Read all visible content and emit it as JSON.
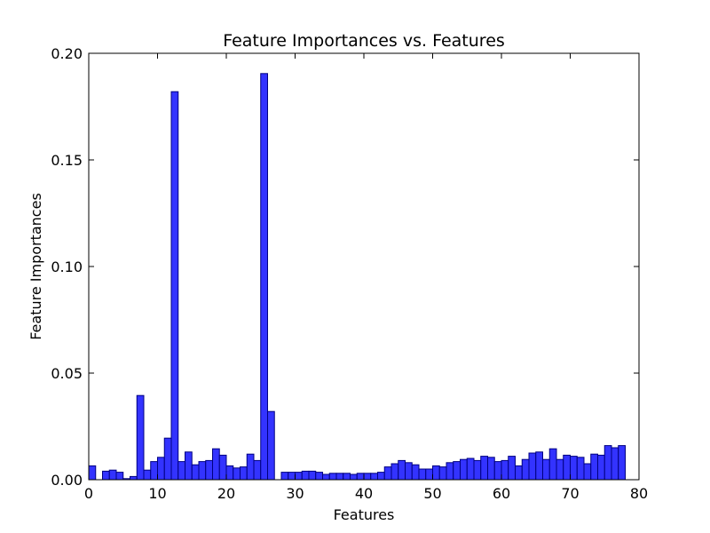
{
  "chart_data": {
    "type": "bar",
    "title": "Feature Importances vs. Features",
    "xlabel": "Features",
    "ylabel": "Feature Importances",
    "xlim": [
      0,
      80
    ],
    "ylim": [
      0,
      0.2
    ],
    "x_ticks": [
      0,
      10,
      20,
      30,
      40,
      50,
      60,
      70,
      80
    ],
    "x_tick_labels": [
      "0",
      "10",
      "20",
      "30",
      "40",
      "50",
      "60",
      "70",
      "80"
    ],
    "y_ticks": [
      0,
      0.05,
      0.1,
      0.15,
      0.2
    ],
    "y_tick_labels": [
      "0.00",
      "0.05",
      "0.10",
      "0.15",
      "0.20"
    ],
    "bar_color": "#3333ff",
    "bar_edge_color": "#000080",
    "grid": false,
    "x": [
      0,
      1,
      2,
      3,
      4,
      5,
      6,
      7,
      8,
      9,
      10,
      11,
      12,
      13,
      14,
      15,
      16,
      17,
      18,
      19,
      20,
      21,
      22,
      23,
      24,
      25,
      26,
      27,
      28,
      29,
      30,
      31,
      32,
      33,
      34,
      35,
      36,
      37,
      38,
      39,
      40,
      41,
      42,
      43,
      44,
      45,
      46,
      47,
      48,
      49,
      50,
      51,
      52,
      53,
      54,
      55,
      56,
      57,
      58,
      59,
      60,
      61,
      62,
      63,
      64,
      65,
      66,
      67,
      68,
      69,
      70,
      71,
      72,
      73,
      74,
      75,
      76,
      77
    ],
    "values": [
      0.0065,
      0.0,
      0.004,
      0.0045,
      0.0035,
      0.0005,
      0.0015,
      0.0395,
      0.0045,
      0.0085,
      0.0105,
      0.0195,
      0.182,
      0.0085,
      0.013,
      0.007,
      0.0085,
      0.009,
      0.0145,
      0.0115,
      0.0065,
      0.0055,
      0.006,
      0.012,
      0.009,
      0.1905,
      0.032,
      0.0,
      0.0035,
      0.0035,
      0.0035,
      0.004,
      0.004,
      0.0035,
      0.0025,
      0.003,
      0.003,
      0.003,
      0.0025,
      0.003,
      0.003,
      0.003,
      0.0035,
      0.006,
      0.0075,
      0.009,
      0.008,
      0.007,
      0.005,
      0.005,
      0.0065,
      0.006,
      0.008,
      0.0085,
      0.0095,
      0.01,
      0.009,
      0.011,
      0.0105,
      0.0085,
      0.009,
      0.011,
      0.0065,
      0.0095,
      0.0125,
      0.013,
      0.0095,
      0.0145,
      0.0095,
      0.0115,
      0.011,
      0.0105,
      0.0075,
      0.012,
      0.0115,
      0.016,
      0.015,
      0.016
    ]
  }
}
